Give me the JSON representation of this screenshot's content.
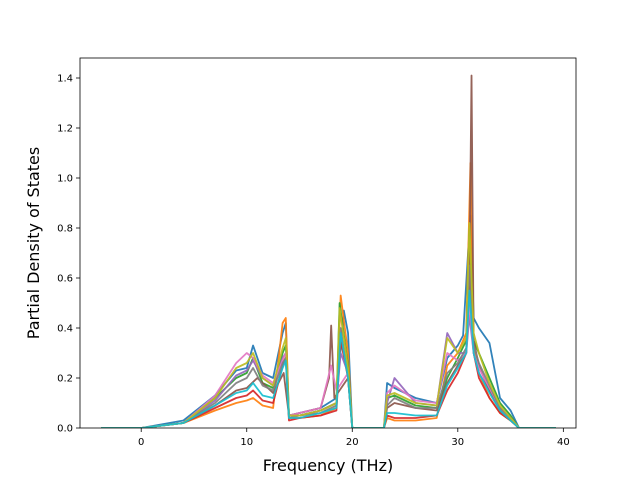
{
  "chart_data": {
    "type": "line",
    "title": "",
    "xlabel": "Frequency (THz)",
    "ylabel": "Partial Density of States",
    "xlim": [
      -5.8,
      41.2
    ],
    "ylim": [
      0,
      1.48
    ],
    "xticks": [
      0,
      10,
      20,
      30,
      40
    ],
    "yticks": [
      0.0,
      0.2,
      0.4,
      0.6,
      0.8,
      1.0,
      1.2,
      1.4
    ],
    "xtick_labels": [
      "0",
      "10",
      "20",
      "30",
      "40"
    ],
    "ytick_labels": [
      "0.0",
      "0.2",
      "0.4",
      "0.6",
      "0.8",
      "1.0",
      "1.2",
      "1.4"
    ],
    "grid": false,
    "legend": "none",
    "series": [
      {
        "color": "#1f77b4",
        "x": [
          -3.8,
          0,
          4,
          7,
          9,
          10,
          10.6,
          11.5,
          12.5,
          13.4,
          13.7,
          14,
          15,
          17,
          18.5,
          19.2,
          19.6,
          20,
          23,
          23.3,
          24,
          26,
          28,
          29,
          30,
          30.5,
          31,
          31.2,
          31.5,
          32,
          33,
          34,
          35,
          35.8,
          39.3
        ],
        "y": [
          0,
          0,
          0.03,
          0.13,
          0.23,
          0.24,
          0.33,
          0.22,
          0.2,
          0.38,
          0.42,
          0.05,
          0.06,
          0.08,
          0.12,
          0.47,
          0.38,
          0,
          0,
          0.18,
          0.16,
          0.12,
          0.1,
          0.28,
          0.33,
          0.37,
          0.72,
          0.85,
          0.44,
          0.4,
          0.34,
          0.12,
          0.07,
          0,
          0
        ]
      },
      {
        "color": "#ff7f0e",
        "x": [
          -3.8,
          0,
          4,
          7,
          9,
          10,
          10.6,
          11.5,
          12.5,
          13.4,
          13.7,
          14,
          15,
          17,
          18.5,
          18.9,
          19.6,
          20,
          23,
          23.3,
          24,
          26,
          28,
          29,
          30,
          30.8,
          31.2,
          31.5,
          32,
          33,
          34,
          35,
          35.8,
          39.3
        ],
        "y": [
          0,
          0,
          0.02,
          0.07,
          0.1,
          0.11,
          0.12,
          0.09,
          0.08,
          0.42,
          0.44,
          0.04,
          0.04,
          0.05,
          0.08,
          0.53,
          0.3,
          0,
          0,
          0.04,
          0.03,
          0.03,
          0.04,
          0.25,
          0.3,
          0.38,
          1.06,
          0.32,
          0.22,
          0.12,
          0.06,
          0.03,
          0,
          0
        ]
      },
      {
        "color": "#2ca02c",
        "x": [
          -3.8,
          0,
          4,
          7,
          9,
          10,
          10.6,
          11.5,
          12.5,
          13.4,
          13.7,
          14,
          15,
          17,
          18.5,
          18.8,
          19.6,
          20,
          23,
          23.3,
          24,
          26,
          28,
          29,
          30,
          30.8,
          31.1,
          31.5,
          32,
          33,
          34,
          35,
          35.8,
          39.3
        ],
        "y": [
          0,
          0,
          0.02,
          0.12,
          0.2,
          0.22,
          0.28,
          0.18,
          0.16,
          0.3,
          0.33,
          0.05,
          0.05,
          0.07,
          0.1,
          0.5,
          0.25,
          0,
          0,
          0.12,
          0.13,
          0.09,
          0.08,
          0.2,
          0.28,
          0.35,
          0.8,
          0.35,
          0.3,
          0.2,
          0.1,
          0.05,
          0,
          0
        ]
      },
      {
        "color": "#d62728",
        "x": [
          -3.8,
          0,
          4,
          7,
          9,
          10,
          10.6,
          11.5,
          12.5,
          13.4,
          13.7,
          14,
          15,
          17,
          18.5,
          18.9,
          19.6,
          20,
          23,
          23.3,
          24,
          26,
          28,
          29,
          30,
          30.8,
          31.1,
          31.5,
          32,
          33,
          34,
          35,
          35.8,
          39.3
        ],
        "y": [
          0,
          0,
          0.02,
          0.08,
          0.12,
          0.13,
          0.15,
          0.11,
          0.1,
          0.25,
          0.28,
          0.03,
          0.04,
          0.05,
          0.07,
          0.35,
          0.2,
          0,
          0,
          0.05,
          0.04,
          0.04,
          0.05,
          0.15,
          0.22,
          0.3,
          0.6,
          0.3,
          0.2,
          0.12,
          0.06,
          0.03,
          0,
          0
        ]
      },
      {
        "color": "#9467bd",
        "x": [
          -3.8,
          0,
          4,
          7,
          9,
          10,
          10.6,
          11.5,
          12.5,
          13.4,
          13.7,
          14,
          15,
          17,
          18.5,
          18.9,
          19.6,
          20,
          23,
          23.3,
          24,
          26,
          28,
          29,
          30,
          30.8,
          31.1,
          31.5,
          32,
          33,
          34,
          35,
          35.8,
          39.3
        ],
        "y": [
          0,
          0,
          0.02,
          0.11,
          0.21,
          0.23,
          0.27,
          0.2,
          0.17,
          0.28,
          0.3,
          0.05,
          0.05,
          0.07,
          0.1,
          0.3,
          0.22,
          0,
          0,
          0.1,
          0.2,
          0.1,
          0.09,
          0.38,
          0.3,
          0.3,
          0.45,
          0.3,
          0.22,
          0.15,
          0.08,
          0.04,
          0,
          0
        ]
      },
      {
        "color": "#8c564b",
        "x": [
          -3.8,
          0,
          4,
          7,
          9,
          10,
          11,
          12.5,
          13.5,
          14,
          15,
          17,
          17.8,
          18,
          18.3,
          19.6,
          20,
          23,
          23.3,
          24,
          26,
          28,
          29,
          30,
          30.8,
          31.1,
          31.3,
          31.5,
          32,
          33,
          34,
          35,
          35.8,
          39.3
        ],
        "y": [
          0,
          0,
          0.02,
          0.09,
          0.15,
          0.16,
          0.2,
          0.14,
          0.22,
          0.05,
          0.06,
          0.08,
          0.2,
          0.41,
          0.12,
          0.2,
          0,
          0,
          0.08,
          0.1,
          0.08,
          0.07,
          0.18,
          0.25,
          0.3,
          0.6,
          1.41,
          0.35,
          0.25,
          0.15,
          0.07,
          0.03,
          0,
          0
        ]
      },
      {
        "color": "#e377c2",
        "x": [
          -3.8,
          0,
          4,
          7,
          9,
          10,
          10.6,
          11.5,
          12.5,
          13.4,
          13.7,
          14,
          15,
          17,
          18,
          18.5,
          19.6,
          20,
          23,
          23.3,
          24,
          26,
          28,
          29,
          30,
          30.8,
          31.1,
          31.5,
          32,
          33,
          34,
          35,
          35.8,
          39.3
        ],
        "y": [
          0,
          0,
          0.02,
          0.13,
          0.26,
          0.3,
          0.28,
          0.21,
          0.18,
          0.27,
          0.3,
          0.05,
          0.06,
          0.08,
          0.25,
          0.15,
          0.22,
          0,
          0,
          0.14,
          0.17,
          0.11,
          0.1,
          0.3,
          0.27,
          0.3,
          0.5,
          0.3,
          0.24,
          0.16,
          0.08,
          0.04,
          0,
          0
        ]
      },
      {
        "color": "#7f7f7f",
        "x": [
          -3.8,
          0,
          4,
          7,
          9,
          10,
          10.6,
          11.5,
          12.5,
          13.4,
          13.7,
          14,
          15,
          17,
          18.5,
          18.9,
          19.6,
          20,
          23,
          23.3,
          24,
          26,
          28,
          29,
          30,
          30.8,
          31.1,
          31.5,
          32,
          33,
          34,
          35,
          35.8,
          39.3
        ],
        "y": [
          0,
          0,
          0.02,
          0.1,
          0.18,
          0.2,
          0.24,
          0.17,
          0.15,
          0.26,
          0.28,
          0.04,
          0.05,
          0.06,
          0.09,
          0.4,
          0.2,
          0,
          0,
          0.09,
          0.12,
          0.08,
          0.08,
          0.22,
          0.26,
          0.32,
          0.65,
          0.33,
          0.26,
          0.17,
          0.08,
          0.04,
          0,
          0
        ]
      },
      {
        "color": "#bcbd22",
        "x": [
          -3.8,
          0,
          4,
          7,
          9,
          10,
          10.6,
          11.5,
          12.5,
          13.4,
          13.7,
          14,
          15,
          17,
          18.5,
          18.8,
          19.6,
          20,
          23,
          23.3,
          24,
          26,
          28,
          29,
          30,
          30.8,
          31.1,
          31.5,
          32,
          33,
          34,
          35,
          35.8,
          39.3
        ],
        "y": [
          0,
          0,
          0.02,
          0.12,
          0.24,
          0.26,
          0.3,
          0.2,
          0.17,
          0.32,
          0.36,
          0.05,
          0.05,
          0.07,
          0.1,
          0.48,
          0.24,
          0,
          0,
          0.13,
          0.14,
          0.1,
          0.09,
          0.36,
          0.3,
          0.36,
          0.82,
          0.38,
          0.3,
          0.18,
          0.09,
          0.04,
          0,
          0
        ]
      },
      {
        "color": "#17becf",
        "x": [
          -3.8,
          0,
          4,
          7,
          9,
          10,
          10.6,
          11.5,
          12.5,
          13.4,
          13.7,
          14,
          15,
          17,
          18.5,
          18.9,
          19.6,
          20,
          23,
          23.3,
          24,
          26,
          28,
          29,
          30,
          30.8,
          31.1,
          31.5,
          32,
          33,
          34,
          35,
          35.8,
          39.3
        ],
        "y": [
          0,
          0,
          0.02,
          0.09,
          0.14,
          0.15,
          0.18,
          0.13,
          0.12,
          0.24,
          0.27,
          0.04,
          0.04,
          0.06,
          0.08,
          0.38,
          0.2,
          0,
          0,
          0.06,
          0.06,
          0.05,
          0.05,
          0.17,
          0.24,
          0.3,
          0.55,
          0.3,
          0.22,
          0.14,
          0.07,
          0.03,
          0,
          0
        ]
      }
    ]
  }
}
